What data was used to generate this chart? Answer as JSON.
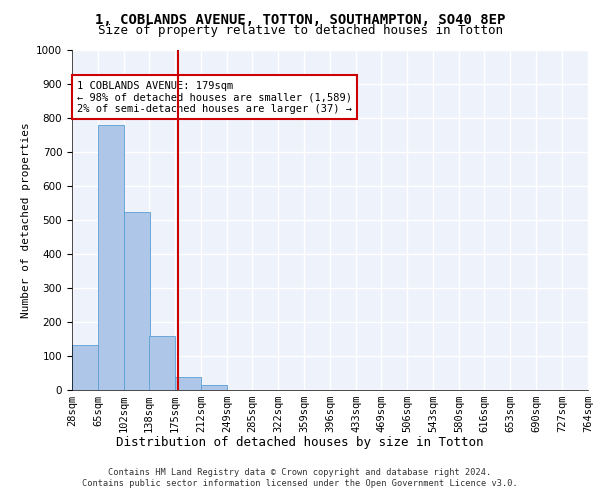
{
  "title1": "1, COBLANDS AVENUE, TOTTON, SOUTHAMPTON, SO40 8EP",
  "title2": "Size of property relative to detached houses in Totton",
  "xlabel": "Distribution of detached houses by size in Totton",
  "ylabel": "Number of detached properties",
  "footer1": "Contains HM Land Registry data © Crown copyright and database right 2024.",
  "footer2": "Contains public sector information licensed under the Open Government Licence v3.0.",
  "bin_edges": [
    28,
    65,
    102,
    138,
    175,
    212,
    249,
    285,
    322,
    359,
    396,
    433,
    469,
    506,
    543,
    580,
    616,
    653,
    690,
    727,
    764
  ],
  "bar_heights": [
    133,
    778,
    523,
    160,
    37,
    14,
    0,
    0,
    0,
    0,
    0,
    0,
    0,
    0,
    0,
    0,
    0,
    0,
    0,
    0
  ],
  "bar_color": "#aec6e8",
  "bar_edge_color": "#5a9fd4",
  "property_size": 179,
  "vline_color": "#cc0000",
  "annotation_text": "1 COBLANDS AVENUE: 179sqm\n← 98% of detached houses are smaller (1,589)\n2% of semi-detached houses are larger (37) →",
  "annotation_box_color": "#ffffff",
  "annotation_box_edge": "#cc0000",
  "ylim": [
    0,
    1000
  ],
  "yticks": [
    0,
    100,
    200,
    300,
    400,
    500,
    600,
    700,
    800,
    900,
    1000
  ],
  "background_color": "#eef2fb",
  "grid_color": "#ffffff",
  "title1_fontsize": 10,
  "title2_fontsize": 9,
  "xlabel_fontsize": 9,
  "ylabel_fontsize": 8,
  "tick_fontsize": 7.5,
  "annotation_fontsize": 7.5
}
